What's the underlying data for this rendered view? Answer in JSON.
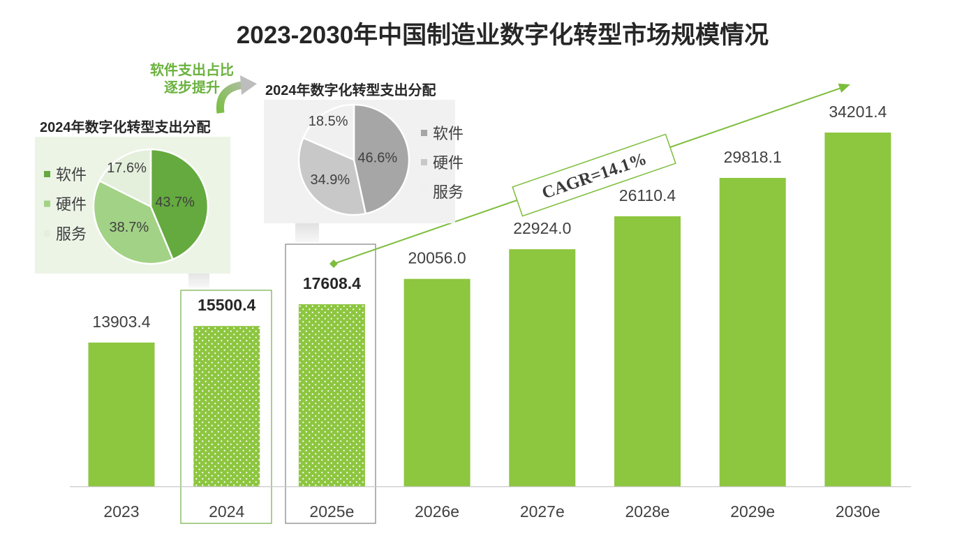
{
  "chart_data": [
    {
      "type": "bar",
      "title": "2023-2030年中国制造业数字化转型市场规模情况",
      "categories": [
        "2023",
        "2024",
        "2025e",
        "2026e",
        "2027e",
        "2028e",
        "2029e",
        "2030e"
      ],
      "values": [
        13903.4,
        15500.4,
        17608.4,
        20056.0,
        22924.0,
        26110.4,
        29818.1,
        34201.4
      ],
      "highlighted": [
        false,
        true,
        true,
        false,
        false,
        false,
        false,
        false
      ],
      "ylim": [
        0,
        40000
      ],
      "grid": false,
      "annotations": [
        {
          "text": "CAGR=14.1%"
        }
      ]
    },
    {
      "type": "pie",
      "title": "2024年数字化转型支出分配",
      "labels": [
        "软件",
        "硬件",
        "服务"
      ],
      "values": [
        43.7,
        38.7,
        17.6
      ],
      "unit": "%",
      "colors": [
        "#64aa3e",
        "#a2d285",
        "#e4efdc"
      ],
      "legend": "left"
    },
    {
      "type": "pie",
      "title": "2024年数字化转型支出分配",
      "labels": [
        "软件",
        "硬件",
        "服务"
      ],
      "values": [
        46.6,
        34.9,
        18.5
      ],
      "unit": "%",
      "colors": [
        "#a6a6a6",
        "#c8c8c8",
        "#f0f0f0"
      ],
      "legend": "right"
    }
  ],
  "callout": {
    "line1": "软件支出占比",
    "line2": "逐步提升"
  },
  "colors": {
    "bar": "#8dc63f",
    "cagr": "#7dbd3c",
    "callout_text": "#6ab23e",
    "highlight_box_2024": "#70ad47",
    "highlight_box_2025e": "#808080",
    "axis": "#c8c8c8",
    "left_panel": "#ecf4e6",
    "right_panel": "#f1f1f1"
  }
}
